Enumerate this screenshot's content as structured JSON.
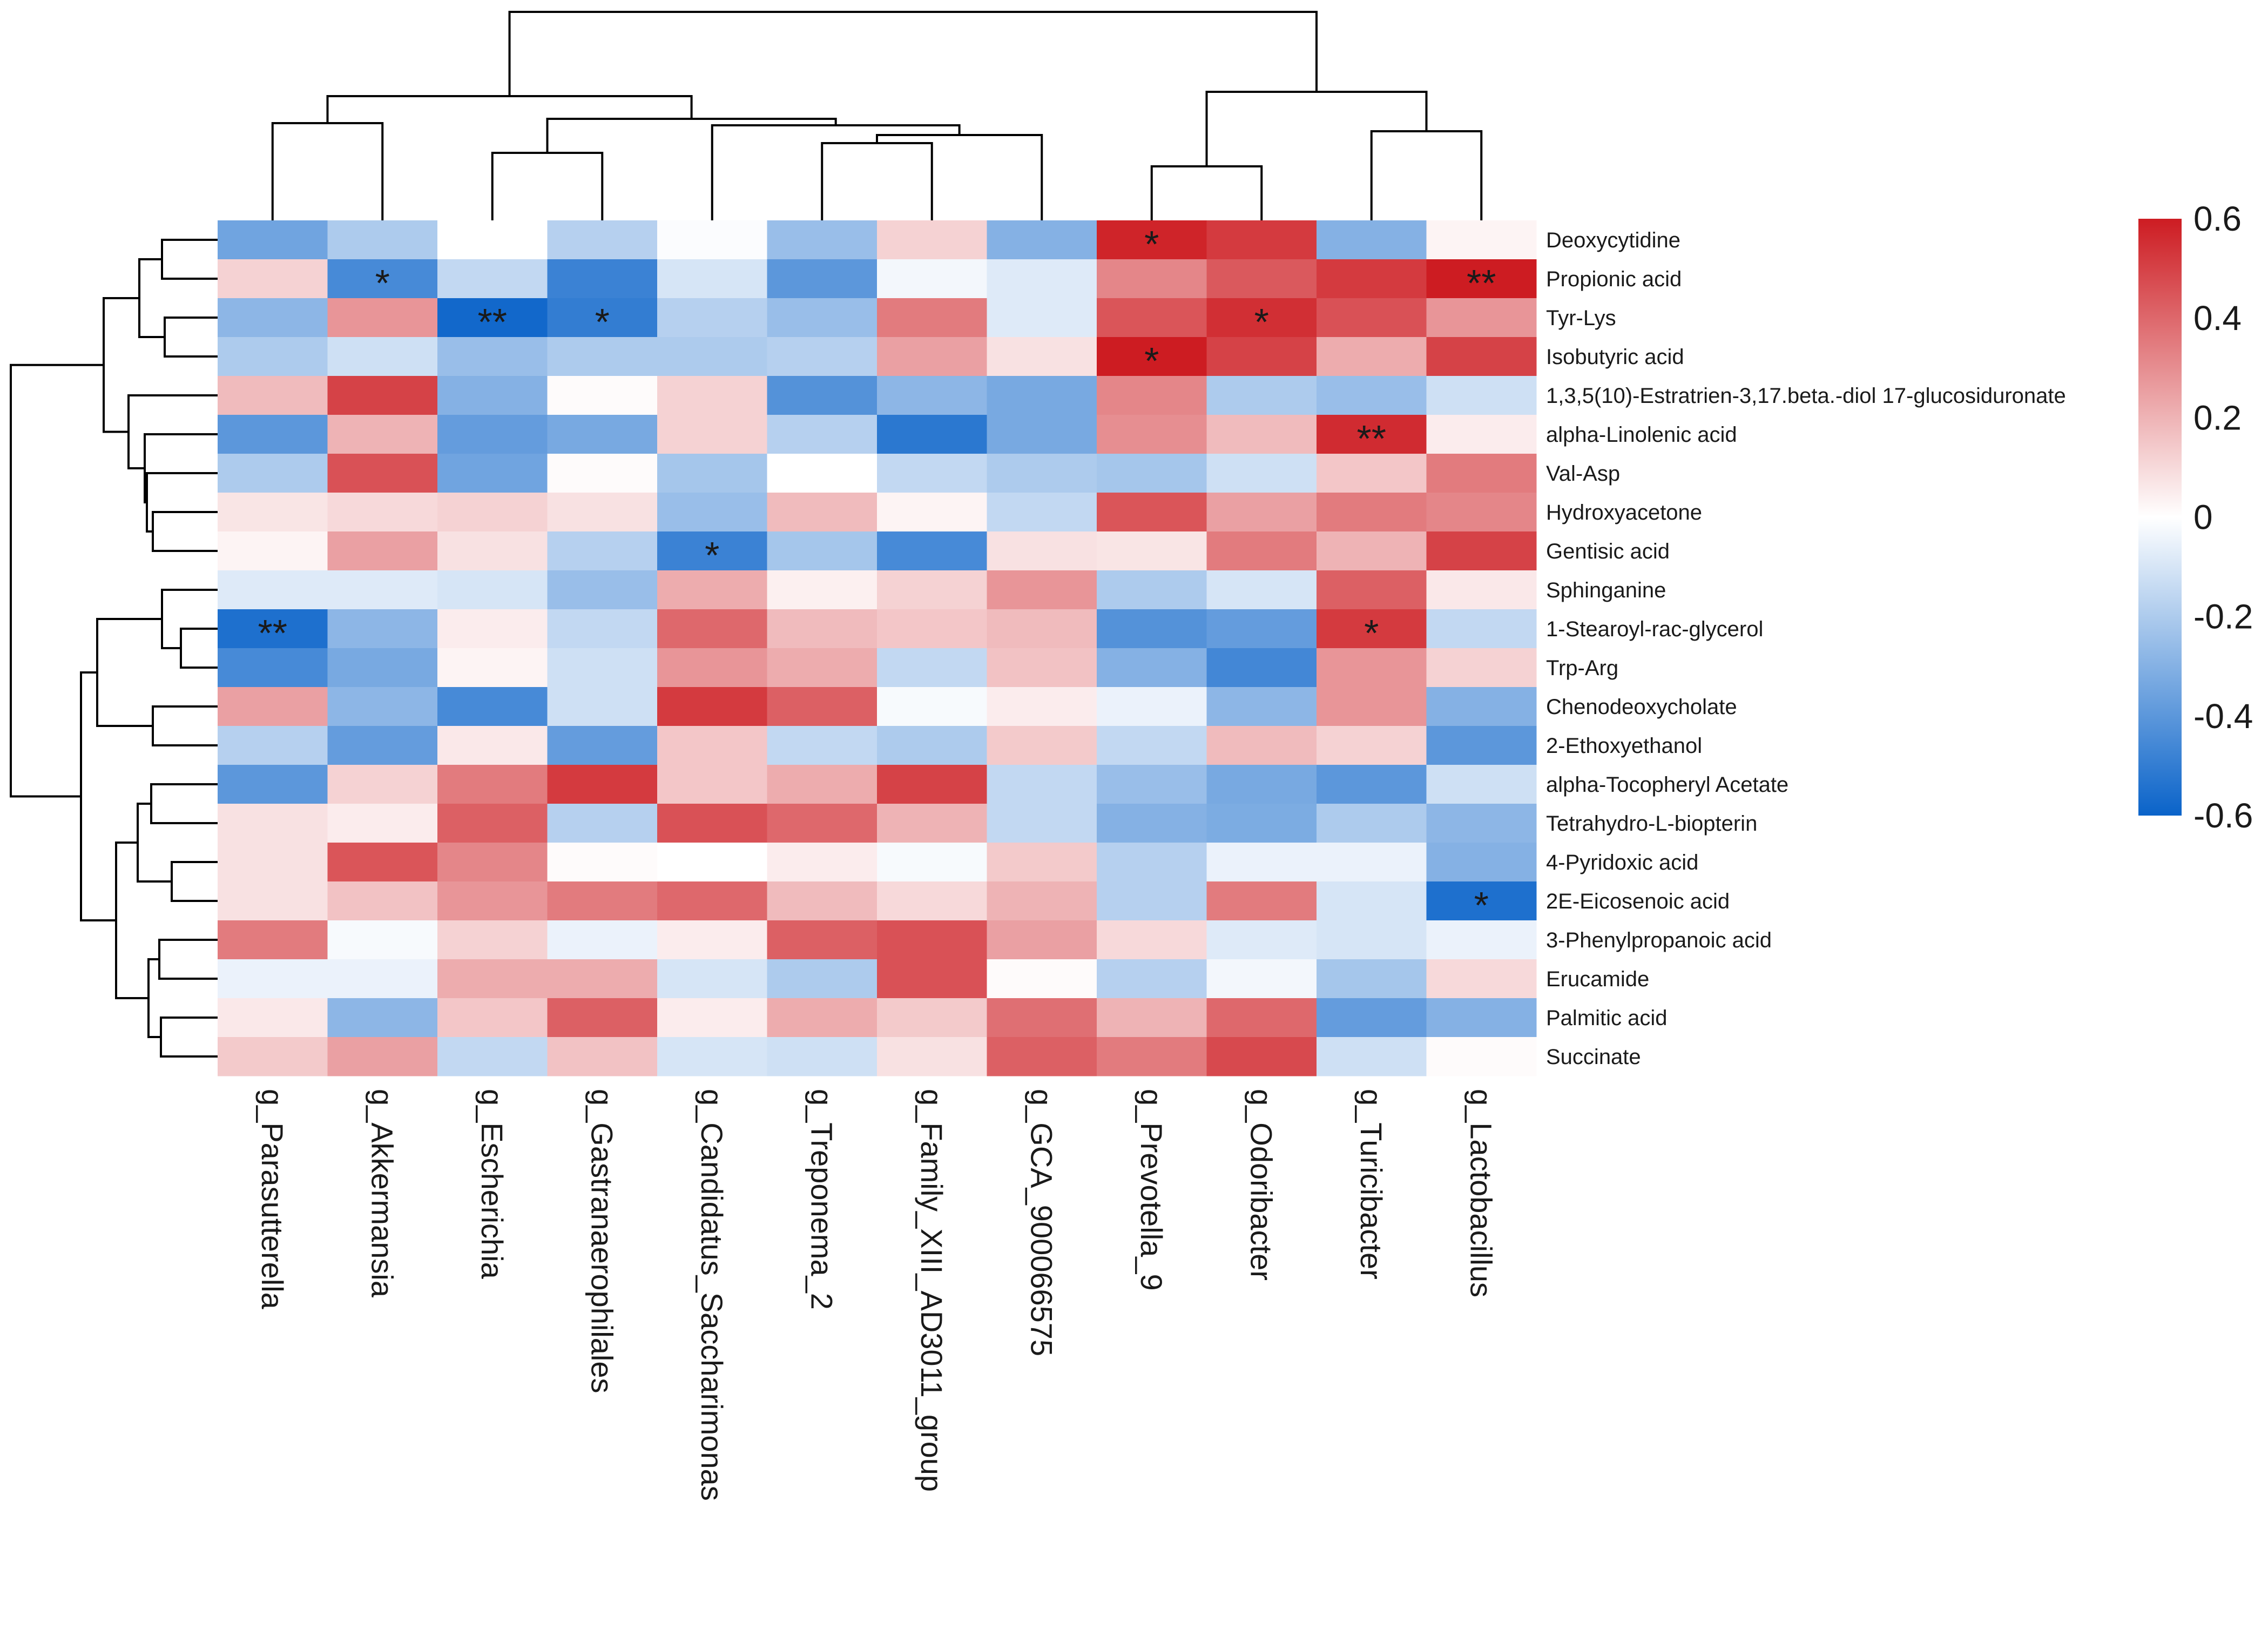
{
  "chart_data": {
    "type": "heatmap",
    "title": "",
    "xlabel": "",
    "ylabel": "",
    "color_scale": {
      "min": -0.6,
      "max": 0.6,
      "low_color": "#0a63c9",
      "mid_color": "#ffffff",
      "high_color": "#cd1c22",
      "ticks": [
        0.6,
        0.4,
        0.2,
        0,
        -0.2,
        -0.4,
        -0.6
      ],
      "tick_labels": [
        "0.6",
        "0.4",
        "0.2",
        "0",
        "-0.2",
        "-0.4",
        "-0.6"
      ],
      "legend_position": "right"
    },
    "columns": [
      "g_Parasutterella",
      "g_Akkermansia",
      "g_Escherichia",
      "g_Gastranaerophilales",
      "g_Candidatus_Saccharimonas",
      "g_Treponema_2",
      "g_Family_XIII_AD3011_group",
      "g_GCA_900066575",
      "g_Prevotella_9",
      "g_Odoribacter",
      "g_Turicibacter",
      "g_Lactobacillus"
    ],
    "rows": [
      "Deoxycytidine",
      "Propionic acid",
      "Tyr-Lys",
      "Isobutyric acid",
      "1,3,5(10)-Estratrien-3,17.beta.-diol 17-glucosiduronate",
      "alpha-Linolenic acid",
      "Val-Asp",
      "Hydroxyacetone",
      "Gentisic acid",
      "Sphinganine",
      "1-Stearoyl-rac-glycerol",
      "Trp-Arg",
      "Chenodeoxycholate",
      "2-Ethoxyethanol",
      "alpha-Tocopheryl Acetate",
      "Tetrahydro-L-biopterin",
      "4-Pyridoxic acid",
      "2E-Eicosenoic acid",
      "3-Phenylpropanoic acid",
      "Erucamide",
      "Palmitic acid",
      "Succinate"
    ],
    "values": [
      [
        -0.35,
        -0.2,
        0.0,
        -0.18,
        -0.01,
        -0.25,
        0.12,
        -0.3,
        0.58,
        0.52,
        -0.3,
        0.03
      ],
      [
        0.12,
        -0.45,
        -0.15,
        -0.48,
        -0.1,
        -0.4,
        -0.03,
        -0.08,
        0.32,
        0.44,
        0.52,
        0.62
      ],
      [
        -0.28,
        0.28,
        -0.58,
        -0.5,
        -0.18,
        -0.25,
        0.35,
        -0.08,
        0.45,
        0.55,
        0.46,
        0.28
      ],
      [
        -0.2,
        -0.12,
        -0.25,
        -0.2,
        -0.2,
        -0.18,
        0.25,
        0.08,
        0.6,
        0.5,
        0.22,
        0.5
      ],
      [
        0.18,
        0.5,
        -0.3,
        0.01,
        0.12,
        -0.42,
        -0.28,
        -0.33,
        0.32,
        -0.2,
        -0.25,
        -0.12
      ],
      [
        -0.4,
        0.2,
        -0.38,
        -0.33,
        0.12,
        -0.18,
        -0.52,
        -0.33,
        0.3,
        0.18,
        0.56,
        0.05
      ],
      [
        -0.2,
        0.46,
        -0.35,
        0.01,
        -0.22,
        0.0,
        -0.15,
        -0.2,
        -0.22,
        -0.12,
        0.15,
        0.35
      ],
      [
        0.07,
        0.1,
        0.12,
        0.08,
        -0.25,
        0.18,
        0.03,
        -0.15,
        0.45,
        0.25,
        0.35,
        0.32
      ],
      [
        0.03,
        0.25,
        0.08,
        -0.18,
        -0.48,
        -0.22,
        -0.45,
        0.08,
        0.07,
        0.35,
        0.2,
        0.5
      ],
      [
        -0.08,
        -0.08,
        -0.1,
        -0.25,
        0.22,
        0.04,
        0.12,
        0.28,
        -0.2,
        -0.1,
        0.42,
        0.06
      ],
      [
        -0.55,
        -0.28,
        0.05,
        -0.15,
        0.4,
        0.18,
        0.15,
        0.18,
        -0.42,
        -0.38,
        0.52,
        -0.15
      ],
      [
        -0.45,
        -0.33,
        0.03,
        -0.12,
        0.28,
        0.22,
        -0.15,
        0.16,
        -0.3,
        -0.46,
        0.28,
        0.12
      ],
      [
        0.25,
        -0.28,
        -0.45,
        -0.12,
        0.52,
        0.42,
        -0.02,
        0.05,
        -0.05,
        -0.28,
        0.28,
        -0.3
      ],
      [
        -0.18,
        -0.38,
        0.06,
        -0.38,
        0.15,
        -0.15,
        -0.2,
        0.14,
        -0.15,
        0.18,
        0.12,
        -0.4
      ],
      [
        -0.4,
        0.12,
        0.35,
        0.52,
        0.15,
        0.22,
        0.5,
        -0.15,
        -0.25,
        -0.33,
        -0.4,
        -0.12
      ],
      [
        0.08,
        0.05,
        0.42,
        -0.18,
        0.46,
        0.4,
        0.2,
        -0.15,
        -0.3,
        -0.32,
        -0.2,
        -0.28
      ],
      [
        0.08,
        0.45,
        0.32,
        0.01,
        0.0,
        0.05,
        -0.02,
        0.14,
        -0.18,
        -0.05,
        -0.05,
        -0.3
      ],
      [
        0.08,
        0.16,
        0.28,
        0.35,
        0.4,
        0.18,
        0.1,
        0.2,
        -0.18,
        0.35,
        -0.1,
        -0.55
      ],
      [
        0.35,
        -0.02,
        0.12,
        -0.05,
        0.05,
        0.42,
        0.46,
        0.25,
        0.1,
        -0.08,
        -0.1,
        -0.05
      ],
      [
        -0.05,
        -0.05,
        0.22,
        0.22,
        -0.1,
        -0.2,
        0.46,
        0.01,
        -0.18,
        -0.03,
        -0.22,
        0.1
      ],
      [
        0.06,
        -0.28,
        0.15,
        0.42,
        0.05,
        0.22,
        0.14,
        0.38,
        0.2,
        0.4,
        -0.38,
        -0.3
      ],
      [
        0.14,
        0.25,
        -0.15,
        0.16,
        -0.1,
        -0.12,
        0.08,
        0.42,
        0.35,
        0.48,
        -0.12,
        0.01
      ]
    ],
    "significance": [
      {
        "row": "Deoxycytidine",
        "column": "g_Prevotella_9",
        "label": "*"
      },
      {
        "row": "Propionic acid",
        "column": "g_Akkermansia",
        "label": "*"
      },
      {
        "row": "Propionic acid",
        "column": "g_Lactobacillus",
        "label": "**"
      },
      {
        "row": "Tyr-Lys",
        "column": "g_Escherichia",
        "label": "**"
      },
      {
        "row": "Tyr-Lys",
        "column": "g_Gastranaerophilales",
        "label": "*"
      },
      {
        "row": "Tyr-Lys",
        "column": "g_Odoribacter",
        "label": "*"
      },
      {
        "row": "Isobutyric acid",
        "column": "g_Prevotella_9",
        "label": "*"
      },
      {
        "row": "alpha-Linolenic acid",
        "column": "g_Turicibacter",
        "label": "**"
      },
      {
        "row": "Gentisic acid",
        "column": "g_Candidatus_Saccharimonas",
        "label": "*"
      },
      {
        "row": "1-Stearoyl-rac-glycerol",
        "column": "g_Parasutterella",
        "label": "**"
      },
      {
        "row": "1-Stearoyl-rac-glycerol",
        "column": "g_Turicibacter",
        "label": "*"
      },
      {
        "row": "2E-Eicosenoic acid",
        "column": "g_Lactobacillus",
        "label": "*"
      }
    ],
    "column_dendrogram": [
      [
        "g_Parasutterella",
        "g_Akkermansia"
      ],
      [
        "g_Escherichia",
        "g_Gastranaerophilales"
      ],
      [
        "g_Treponema_2",
        "g_Family_XIII_AD3011_group"
      ],
      [
        "g_Prevotella_9",
        "g_Odoribacter"
      ],
      [
        "g_Turicibacter",
        "g_Lactobacillus"
      ]
    ],
    "row_dendrogram": [
      [
        "Deoxycytidine",
        "Propionic acid"
      ],
      [
        "Tyr-Lys",
        "Isobutyric acid"
      ],
      [
        "Hydroxyacetone",
        "Gentisic acid"
      ],
      [
        "1-Stearoyl-rac-glycerol",
        "Trp-Arg"
      ],
      [
        "4-Pyridoxic acid",
        "2E-Eicosenoic acid"
      ],
      [
        "Palmitic acid",
        "Succinate"
      ]
    ]
  }
}
